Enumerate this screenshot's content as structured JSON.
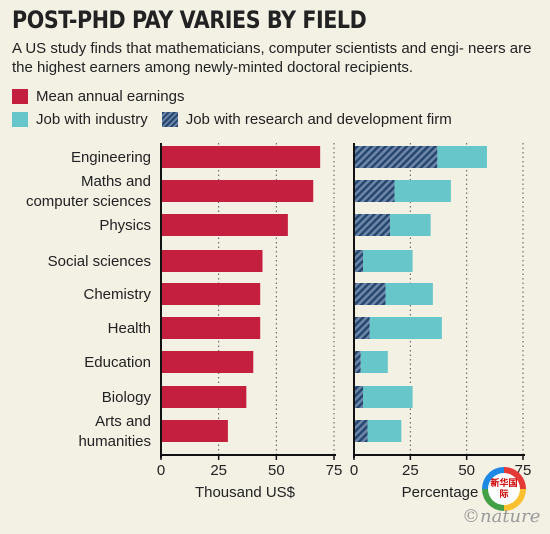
{
  "title": "POST-PHD PAY VARIES BY FIELD",
  "subtitle": "A US study finds that mathematicians, computer scientists and engi- neers are the highest earners among newly-minted doctoral recipients.",
  "legend": {
    "mean": "Mean annual earnings",
    "industry": "Job with industry",
    "rnd": "Job with research and development firm"
  },
  "colors": {
    "red": "#c41f3e",
    "teal": "#66c6c9",
    "navy": "#24456e"
  },
  "logo_text": "新华国际",
  "watermark": "©nature",
  "chart_data": [
    {
      "type": "bar",
      "orientation": "horizontal",
      "categories": [
        "Engineering",
        "Maths and computer sciences",
        "Physics",
        "Social sciences",
        "Chemistry",
        "Health",
        "Education",
        "Biology",
        "Arts and humanities"
      ],
      "category_lines": [
        [
          "Engineering"
        ],
        [
          "Maths and",
          "computer sciences"
        ],
        [
          "Physics"
        ],
        [
          "Social sciences"
        ],
        [
          "Chemistry"
        ],
        [
          "Health"
        ],
        [
          "Education"
        ],
        [
          "Biology"
        ],
        [
          "Arts and",
          "humanities"
        ]
      ],
      "series": [
        {
          "name": "Mean annual earnings",
          "values": [
            69,
            66,
            55,
            44,
            43,
            43,
            40,
            37,
            29
          ]
        }
      ],
      "xlim": [
        0,
        75
      ],
      "xticks": [
        "0",
        "25",
        "50",
        "75"
      ],
      "xlabel": "Thousand US$",
      "grid": "dotted vertical"
    },
    {
      "type": "bar",
      "orientation": "horizontal",
      "stacked": true,
      "categories": [
        "Engineering",
        "Maths and computer sciences",
        "Physics",
        "Social sciences",
        "Chemistry",
        "Health",
        "Education",
        "Biology",
        "Arts and humanities"
      ],
      "series": [
        {
          "name": "Job with research and development firm",
          "values": [
            37,
            18,
            16,
            4,
            14,
            7,
            3,
            4,
            6
          ]
        },
        {
          "name": "Job with industry",
          "values": [
            22,
            25,
            18,
            22,
            21,
            32,
            12,
            22,
            15
          ]
        }
      ],
      "xlim": [
        0,
        75
      ],
      "xticks": [
        "0",
        "25",
        "50",
        "75"
      ],
      "xlabel": "Percentage",
      "grid": "dotted vertical"
    }
  ]
}
